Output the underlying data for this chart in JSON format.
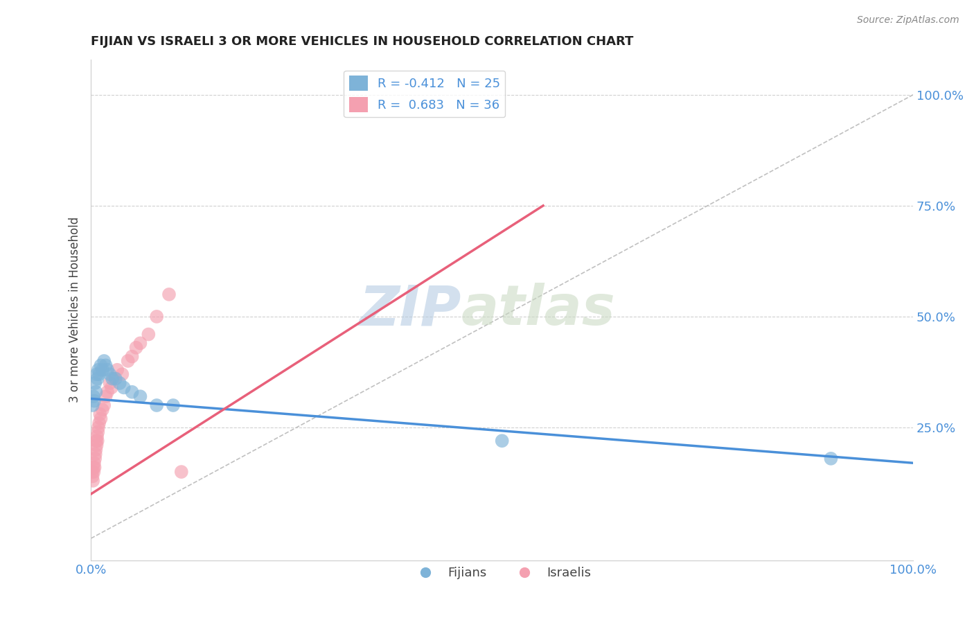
{
  "title": "FIJIAN VS ISRAELI 3 OR MORE VEHICLES IN HOUSEHOLD CORRELATION CHART",
  "source_text": "Source: ZipAtlas.com",
  "ylabel": "3 or more Vehicles in Household",
  "xlim": [
    0,
    100
  ],
  "ylim": [
    -5,
    108
  ],
  "fijian_color": "#7EB3D8",
  "israeli_color": "#F4A0B0",
  "fijian_line_color": "#4A90D9",
  "israeli_line_color": "#E8607A",
  "diagonal_color": "#C0C0C0",
  "legend_R_fijian": "R = -0.412",
  "legend_N_fijian": "N = 25",
  "legend_R_israeli": "R =  0.683",
  "legend_N_israeli": "N = 36",
  "watermark_zip": "ZIP",
  "watermark_atlas": "atlas",
  "fijian_x": [
    0.2,
    0.3,
    0.4,
    0.5,
    0.6,
    0.7,
    0.8,
    0.9,
    1.0,
    1.2,
    1.4,
    1.6,
    1.8,
    2.0,
    2.3,
    2.6,
    3.0,
    3.5,
    4.0,
    5.0,
    6.0,
    8.0,
    10.0,
    50.0,
    90.0
  ],
  "fijian_y": [
    30,
    32,
    31,
    35,
    33,
    37,
    36,
    38,
    37,
    39,
    38,
    40,
    39,
    38,
    37,
    36,
    36,
    35,
    34,
    33,
    32,
    30,
    30,
    22,
    18
  ],
  "israeli_x": [
    0.15,
    0.2,
    0.25,
    0.3,
    0.35,
    0.4,
    0.45,
    0.5,
    0.55,
    0.6,
    0.65,
    0.7,
    0.75,
    0.8,
    0.85,
    0.9,
    1.0,
    1.1,
    1.2,
    1.4,
    1.6,
    1.8,
    2.0,
    2.3,
    2.5,
    2.8,
    3.2,
    3.8,
    4.5,
    5.0,
    5.5,
    6.0,
    7.0,
    8.0,
    9.5,
    11.0
  ],
  "israeli_y": [
    15,
    14,
    13,
    16,
    15,
    17,
    16,
    18,
    19,
    20,
    22,
    21,
    23,
    22,
    24,
    25,
    26,
    28,
    27,
    29,
    30,
    32,
    33,
    35,
    34,
    36,
    38,
    37,
    40,
    41,
    43,
    44,
    46,
    50,
    55,
    15
  ],
  "fijian_trend_x": [
    0,
    100
  ],
  "fijian_trend_y": [
    31.5,
    17.0
  ],
  "israeli_trend_x": [
    0,
    55
  ],
  "israeli_trend_y": [
    10.0,
    75.0
  ]
}
